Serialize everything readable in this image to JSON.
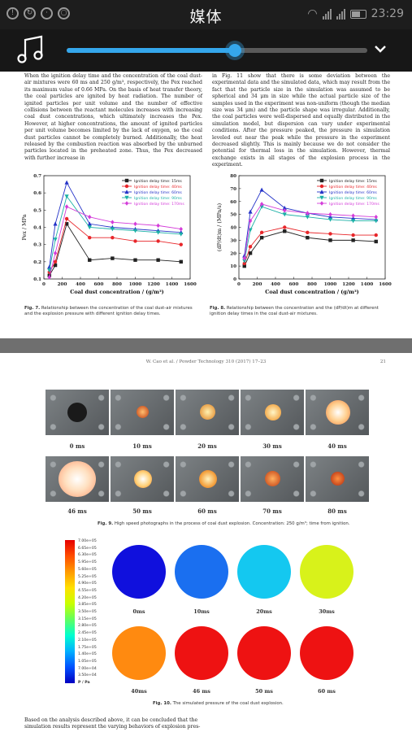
{
  "status_bar": {
    "title": "媒体",
    "time": "23:29"
  },
  "media": {
    "progress_percent": 56,
    "accent": "#35a7ec"
  },
  "page1": {
    "left_text": "When the ignition delay time and the concentration of the coal dust-air mixtures were 60 ms and 250 g/m³, respectively, the Pex reached its maximum value of 0.66 MPa. On the basis of heat transfer theory, the coal particles are ignited by heat radiation. The number of ignited particles per unit volume and the number of effective collisions between the reactant molecules increases with increasing coal dust concentrations, which ultimately increases the Pex. However, at higher concentrations, the amount of ignited particles per unit volume becomes limited by the lack of oxygen, so the coal dust particles cannot be completely burned. Additionally, the heat released by the combustion reaction was absorbed by the unburned particles located in the preheated zone. Thus, the Pex decreased with further increase in",
    "right_text": "in Fig. 11 show that there is some deviation between the experimental data and the simulated data, which may result from the fact that the particle size in the simulation was assumed to be spherical and 34 μm in size while the actual particle size of the samples used in the experiment was non-uniform (though the median size was 34 μm) and the particle shape was irregular. Additionally, the coal particles were well-dispersed and equally distributed in the simulation model, but dispersion can vary under experimental conditions. After the pressure peaked, the pressure in simulation leveled out near the peak while the pressure in the experiment decreased slightly. This is mainly because we do not consider the potential for thermal loss in the simulation. However, thermal exchange exists in all stages of the explosion process in the experiment.",
    "fig7_caption_label": "Fig. 7.",
    "fig7_caption": "Relationship between the concentration of the coal dust-air mixtures and the explosion pressure with different ignition delay times.",
    "fig8_caption_label": "Fig. 8.",
    "fig8_caption": "Relationship between the concentration and the (dP/dt)m at different ignition delay times in the coal dust-air mixtures."
  },
  "chart_data": [
    {
      "type": "line",
      "xlabel": "Coal dust concentration / (g/m³)",
      "ylabel": "Pex / MPa",
      "xlim": [
        0,
        1600
      ],
      "ylim": [
        0.1,
        0.7
      ],
      "xticks": [
        "0",
        "200",
        "400",
        "600",
        "800",
        "1000",
        "1200",
        "1400",
        "1600"
      ],
      "yticks": [
        "0.1",
        "0.2",
        "0.3",
        "0.4",
        "0.5",
        "0.6",
        "0.7"
      ],
      "legend_position": "top-right",
      "x": [
        60,
        125,
        250,
        500,
        750,
        1000,
        1250,
        1500
      ],
      "series": [
        {
          "name": "Ignition delay time: 15ms",
          "color": "#222222",
          "marker": "square",
          "values": [
            0.12,
            0.18,
            0.42,
            0.21,
            0.22,
            0.21,
            0.21,
            0.2
          ]
        },
        {
          "name": "Ignition delay time: 40ms",
          "color": "#e8262a",
          "marker": "circle",
          "values": [
            0.14,
            0.2,
            0.45,
            0.34,
            0.34,
            0.32,
            0.32,
            0.3
          ]
        },
        {
          "name": "Ignition delay time: 60ms",
          "color": "#2433c8",
          "marker": "triangle",
          "values": [
            0.17,
            0.42,
            0.66,
            0.42,
            0.4,
            0.39,
            0.38,
            0.37
          ]
        },
        {
          "name": "Ignition delay time: 90ms",
          "color": "#1bb0a6",
          "marker": "triangle-down",
          "values": [
            0.15,
            0.33,
            0.58,
            0.4,
            0.39,
            0.38,
            0.37,
            0.36
          ]
        },
        {
          "name": "Ignition delay time: 170ms",
          "color": "#d43cd9",
          "marker": "diamond",
          "values": [
            0.11,
            0.25,
            0.52,
            0.46,
            0.43,
            0.42,
            0.41,
            0.39
          ]
        }
      ]
    },
    {
      "type": "line",
      "xlabel": "Coal dust concentration / (g/m³)",
      "ylabel": "(dP/dt)m / (MPa/s)",
      "xlim": [
        0,
        1600
      ],
      "ylim": [
        0,
        80
      ],
      "xticks": [
        "0",
        "200",
        "400",
        "600",
        "800",
        "1000",
        "1200",
        "1400",
        "1600"
      ],
      "yticks": [
        "0",
        "10",
        "20",
        "30",
        "40",
        "50",
        "60",
        "70",
        "80"
      ],
      "legend_position": "top-right",
      "x": [
        60,
        125,
        250,
        500,
        750,
        1000,
        1250,
        1500
      ],
      "series": [
        {
          "name": "Ignition delay time: 15ms",
          "color": "#222222",
          "marker": "square",
          "values": [
            10,
            20,
            32,
            37,
            32,
            30,
            30,
            29
          ]
        },
        {
          "name": "Ignition delay time: 40ms",
          "color": "#e8262a",
          "marker": "circle",
          "values": [
            12,
            25,
            36,
            40,
            36,
            35,
            34,
            34
          ]
        },
        {
          "name": "Ignition delay time: 60ms",
          "color": "#2433c8",
          "marker": "triangle",
          "values": [
            18,
            52,
            69,
            55,
            51,
            48,
            47,
            46
          ]
        },
        {
          "name": "Ignition delay time: 90ms",
          "color": "#1bb0a6",
          "marker": "triangle-down",
          "values": [
            14,
            38,
            56,
            50,
            48,
            46,
            45,
            45
          ]
        },
        {
          "name": "Ignition delay time: 170ms",
          "color": "#d43cd9",
          "marker": "diamond",
          "values": [
            16,
            45,
            58,
            53,
            51,
            50,
            49,
            48
          ]
        }
      ]
    }
  ],
  "page2": {
    "header": "W. Cao et al. / Powder Technology 310 (2017) 17–23",
    "page_number": "21",
    "photo_times": [
      "0 ms",
      "10 ms",
      "20 ms",
      "30 ms",
      "40 ms",
      "46 ms",
      "50 ms",
      "60 ms",
      "70 ms",
      "80 ms"
    ],
    "fig9_caption_label": "Fig. 9.",
    "fig9_caption": "High speed photographs in the process of coal dust explosion. Concentration: 250 g/m³; time from ignition.",
    "colorbar_ticks": [
      "7.00e+05",
      "6.65e+05",
      "6.30e+05",
      "5.95e+05",
      "5.60e+05",
      "5.25e+05",
      "4.90e+05",
      "4.55e+05",
      "4.20e+05",
      "3.85e+05",
      "3.50e+05",
      "3.15e+05",
      "2.80e+05",
      "2.45e+05",
      "2.10e+05",
      "1.75e+05",
      "1.40e+05",
      "1.05e+05",
      "7.00e+04",
      "3.50e+04"
    ],
    "colorbar_unit": "P / Pa",
    "sim_times": [
      "0ms",
      "10ms",
      "20ms",
      "30ms",
      "40ms",
      "46 ms",
      "50 ms",
      "60 ms"
    ],
    "sim_colors": [
      "#1010dd",
      "#1a6ff0",
      "#14c8f0",
      "#d8f21a",
      "#ff8a10",
      "#ee1212",
      "#ee1212",
      "#ee1212"
    ],
    "fig10_caption_label": "Fig. 10.",
    "fig10_caption": "The simulated pressure of the coal dust explosion.",
    "bottom_text": "Based on the analysis described above, it can be concluded that the simulation results represent the varying behaviors of explosion pres-"
  }
}
